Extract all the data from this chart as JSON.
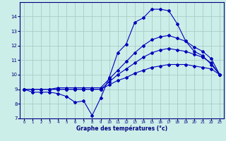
{
  "xlabel": "Graphe des températures (°c)",
  "background_color": "#cceee8",
  "grid_color": "#aaccc8",
  "line_color": "#0000bb",
  "x": [
    0,
    1,
    2,
    3,
    4,
    5,
    6,
    7,
    8,
    9,
    10,
    11,
    12,
    13,
    14,
    15,
    16,
    17,
    18,
    19,
    20,
    21,
    22,
    23
  ],
  "series1": [
    9.0,
    8.8,
    8.8,
    8.8,
    8.7,
    8.5,
    8.1,
    8.2,
    7.2,
    8.4,
    9.8,
    11.5,
    12.1,
    13.6,
    13.9,
    14.5,
    14.5,
    14.4,
    13.5,
    12.3,
    11.6,
    11.3,
    10.7,
    10.0
  ],
  "series2": [
    9.0,
    9.0,
    9.0,
    9.0,
    9.0,
    9.0,
    9.0,
    9.0,
    9.0,
    9.0,
    9.3,
    9.6,
    9.8,
    10.1,
    10.3,
    10.5,
    10.6,
    10.7,
    10.7,
    10.7,
    10.6,
    10.5,
    10.4,
    10.0
  ],
  "series3": [
    9.0,
    9.0,
    9.0,
    9.0,
    9.0,
    9.0,
    9.0,
    9.0,
    9.0,
    9.0,
    9.5,
    10.0,
    10.4,
    10.8,
    11.2,
    11.5,
    11.7,
    11.8,
    11.7,
    11.6,
    11.4,
    11.2,
    10.8,
    10.0
  ],
  "series4": [
    9.0,
    9.0,
    9.0,
    9.0,
    9.1,
    9.1,
    9.1,
    9.1,
    9.1,
    9.1,
    9.7,
    10.3,
    10.9,
    11.5,
    12.0,
    12.4,
    12.6,
    12.7,
    12.5,
    12.3,
    11.9,
    11.6,
    11.1,
    10.0
  ],
  "ylim": [
    7,
    15
  ],
  "xlim": [
    -0.5,
    23.5
  ],
  "yticks": [
    7,
    8,
    9,
    10,
    11,
    12,
    13,
    14
  ],
  "xticks": [
    0,
    1,
    2,
    3,
    4,
    5,
    6,
    7,
    8,
    9,
    10,
    11,
    12,
    13,
    14,
    15,
    16,
    17,
    18,
    19,
    20,
    21,
    22,
    23
  ],
  "marker_size": 2.0,
  "linewidth": 0.8
}
